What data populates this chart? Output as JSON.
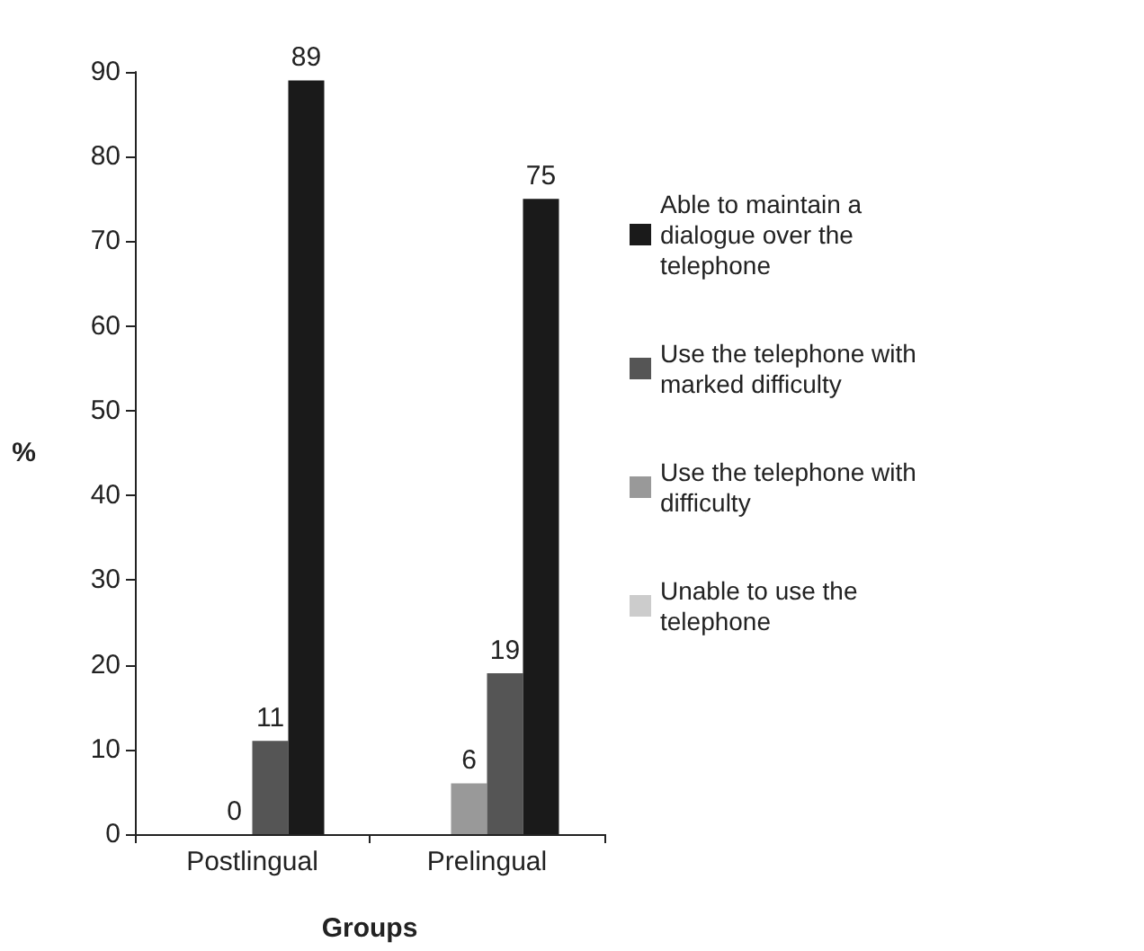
{
  "chart_data": {
    "type": "bar",
    "xlabel": "Groups",
    "ylabel": "%",
    "categories": [
      "Postlingual",
      "Prelingual"
    ],
    "series": [
      {
        "name": "Unable to use the telephone",
        "color": "#cccccc",
        "values": [
          0,
          0
        ],
        "value_labels": [
          null,
          null
        ]
      },
      {
        "name": "Use the telephone with difficulty",
        "color": "#999999",
        "values": [
          0,
          6
        ],
        "value_labels": [
          "0",
          "6"
        ]
      },
      {
        "name": "Use the telephone with marked difficulty",
        "color": "#555555",
        "values": [
          11,
          19
        ],
        "value_labels": [
          "11",
          "19"
        ]
      },
      {
        "name": "Able to maintain a dialogue over the telephone",
        "color": "#1a1a1a",
        "values": [
          89,
          75
        ],
        "value_labels": [
          "89",
          "75"
        ]
      }
    ],
    "ylim": [
      0,
      90
    ],
    "yticks": [
      0,
      10,
      20,
      30,
      40,
      50,
      60,
      70,
      80,
      90
    ],
    "grid": false,
    "legend": "right"
  }
}
